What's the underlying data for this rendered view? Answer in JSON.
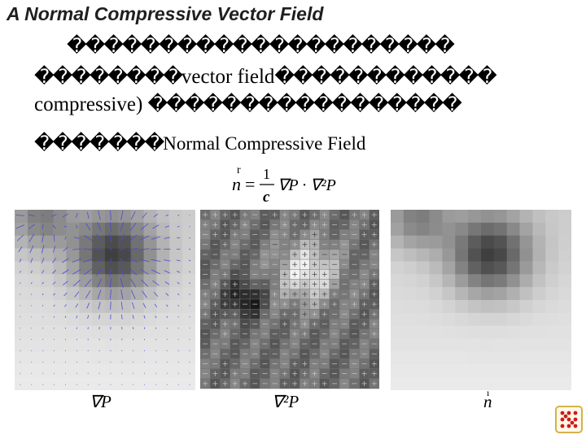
{
  "slide": {
    "title": "A Normal Compressive Vector Field",
    "garbled_line_1": "���������������������",
    "line_2_pre": "��������",
    "line_2_text": "vector field",
    "line_2_post": "������������",
    "line_3_text": "compressive)",
    "line_3_post": "�����������������",
    "line_4_pre": "�������",
    "line_4_text": "Normal Compressive Field"
  },
  "formula": {
    "lhs": "n",
    "numerator": "1",
    "denominator": "c",
    "rhs": "∇P · ∇²P"
  },
  "captions": {
    "gradient": "∇P",
    "laplacian": "∇²P",
    "normal": "n"
  },
  "colors": {
    "vector_arrows": "#4a4adf",
    "logo_red": "#cc1a1a",
    "logo_border": "#d4b24a"
  }
}
